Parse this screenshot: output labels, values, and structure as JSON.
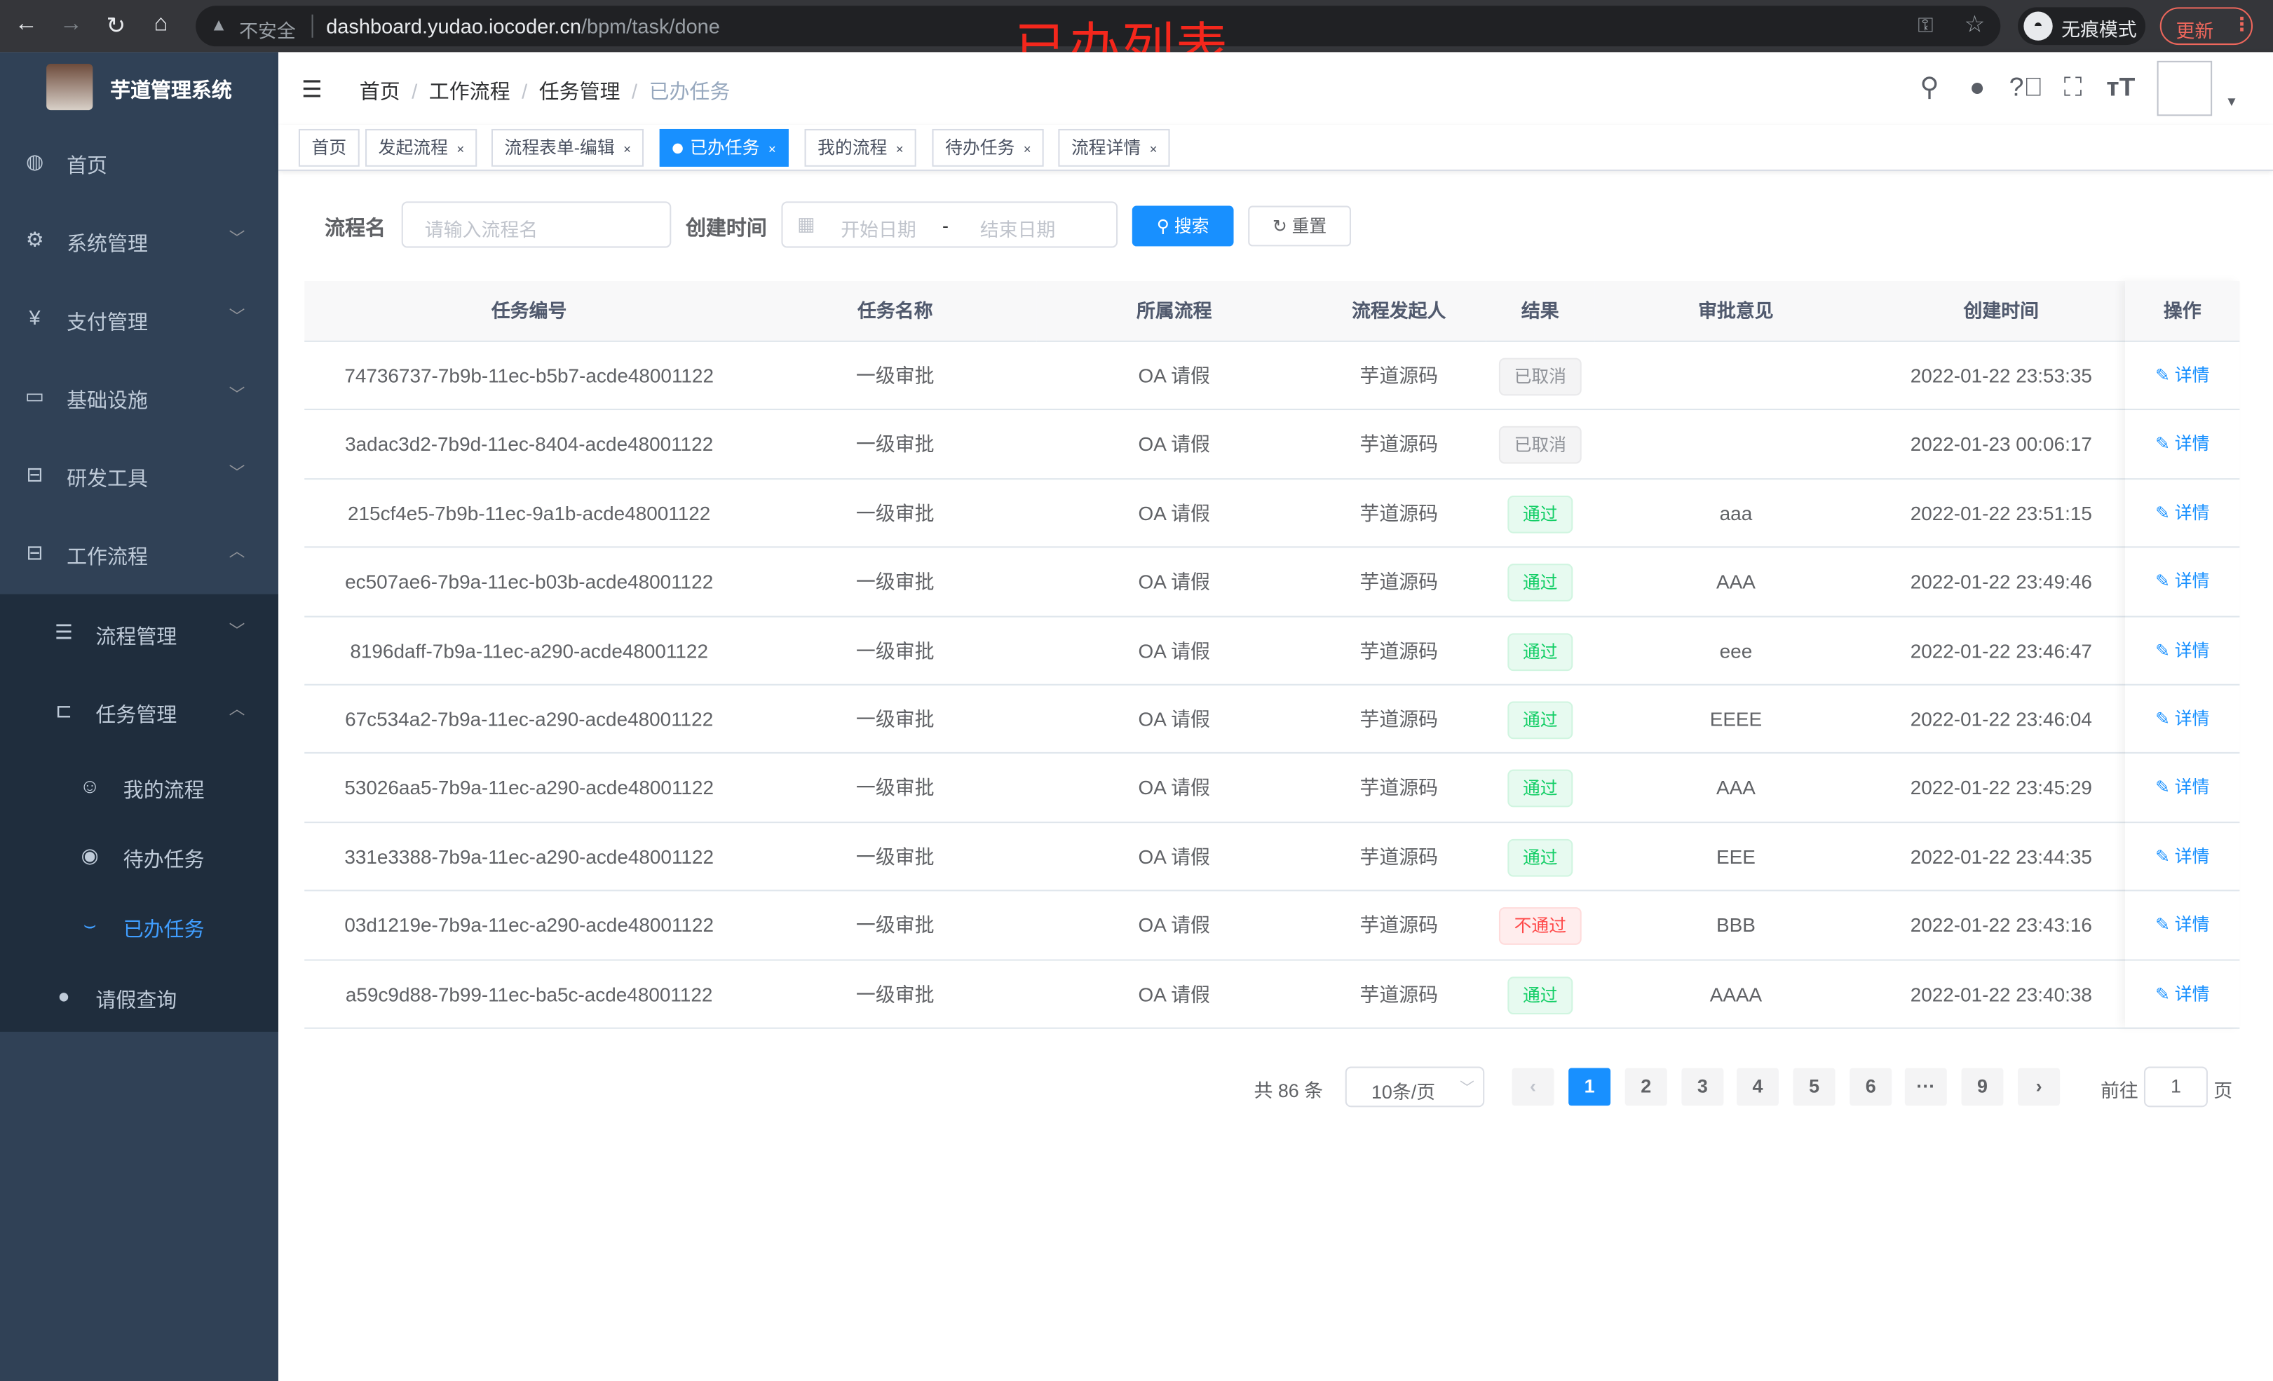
{
  "browser": {
    "insecure_label": "不安全",
    "url_host": "dashboard.yudao.iocoder.cn",
    "url_path": "/bpm/task/done",
    "incognito_label": "无痕模式",
    "update_label": "更新"
  },
  "annotation": "已办列表",
  "sidebar": {
    "title": "芋道管理系统",
    "items": [
      {
        "label": "首页",
        "icon": "dashboard-icon"
      },
      {
        "label": "系统管理",
        "icon": "gear-icon"
      },
      {
        "label": "支付管理",
        "icon": "yen-icon"
      },
      {
        "label": "基础设施",
        "icon": "monitor-icon"
      },
      {
        "label": "研发工具",
        "icon": "toolbox-icon"
      },
      {
        "label": "工作流程",
        "icon": "toolbox-icon"
      }
    ],
    "sub_items": [
      {
        "label": "流程管理"
      },
      {
        "label": "任务管理"
      },
      {
        "label": "我的流程"
      },
      {
        "label": "待办任务"
      },
      {
        "label": "已办任务"
      },
      {
        "label": "请假查询"
      }
    ],
    "active_color": "#409eff"
  },
  "breadcrumb": [
    "首页",
    "工作流程",
    "任务管理",
    "已办任务"
  ],
  "tags": [
    {
      "label": "首页"
    },
    {
      "label": "发起流程"
    },
    {
      "label": "流程表单-编辑"
    },
    {
      "label": "已办任务",
      "active": true
    },
    {
      "label": "我的流程"
    },
    {
      "label": "待办任务"
    },
    {
      "label": "流程详情"
    }
  ],
  "search": {
    "name_label": "流程名",
    "name_placeholder": "请输入流程名",
    "time_label": "创建时间",
    "start_placeholder": "开始日期",
    "range_sep": "-",
    "end_placeholder": "结束日期",
    "search_label": "搜索",
    "reset_label": "重置"
  },
  "table": {
    "columns": [
      "任务编号",
      "任务名称",
      "所属流程",
      "流程发起人",
      "结果",
      "审批意见",
      "创建时间",
      "操作"
    ],
    "action_label": "详情",
    "rows": [
      {
        "id": "74736737-7b9b-11ec-b5b7-acde48001122",
        "name": "一级审批",
        "process": "OA 请假",
        "starter": "芋道源码",
        "result": "已取消",
        "status": "cancel",
        "comment": "",
        "time": "2022-01-22 23:53:35"
      },
      {
        "id": "3adac3d2-7b9d-11ec-8404-acde48001122",
        "name": "一级审批",
        "process": "OA 请假",
        "starter": "芋道源码",
        "result": "已取消",
        "status": "cancel",
        "comment": "",
        "time": "2022-01-23 00:06:17"
      },
      {
        "id": "215cf4e5-7b9b-11ec-9a1b-acde48001122",
        "name": "一级审批",
        "process": "OA 请假",
        "starter": "芋道源码",
        "result": "通过",
        "status": "pass",
        "comment": "aaa",
        "time": "2022-01-22 23:51:15"
      },
      {
        "id": "ec507ae6-7b9a-11ec-b03b-acde48001122",
        "name": "一级审批",
        "process": "OA 请假",
        "starter": "芋道源码",
        "result": "通过",
        "status": "pass",
        "comment": "AAA",
        "time": "2022-01-22 23:49:46"
      },
      {
        "id": "8196daff-7b9a-11ec-a290-acde48001122",
        "name": "一级审批",
        "process": "OA 请假",
        "starter": "芋道源码",
        "result": "通过",
        "status": "pass",
        "comment": "eee",
        "time": "2022-01-22 23:46:47"
      },
      {
        "id": "67c534a2-7b9a-11ec-a290-acde48001122",
        "name": "一级审批",
        "process": "OA 请假",
        "starter": "芋道源码",
        "result": "通过",
        "status": "pass",
        "comment": "EEEE",
        "time": "2022-01-22 23:46:04"
      },
      {
        "id": "53026aa5-7b9a-11ec-a290-acde48001122",
        "name": "一级审批",
        "process": "OA 请假",
        "starter": "芋道源码",
        "result": "通过",
        "status": "pass",
        "comment": "AAA",
        "time": "2022-01-22 23:45:29"
      },
      {
        "id": "331e3388-7b9a-11ec-a290-acde48001122",
        "name": "一级审批",
        "process": "OA 请假",
        "starter": "芋道源码",
        "result": "通过",
        "status": "pass",
        "comment": "EEE",
        "time": "2022-01-22 23:44:35"
      },
      {
        "id": "03d1219e-7b9a-11ec-a290-acde48001122",
        "name": "一级审批",
        "process": "OA 请假",
        "starter": "芋道源码",
        "result": "不通过",
        "status": "fail",
        "comment": "BBB",
        "time": "2022-01-22 23:43:16"
      },
      {
        "id": "a59c9d88-7b99-11ec-ba5c-acde48001122",
        "name": "一级审批",
        "process": "OA 请假",
        "starter": "芋道源码",
        "result": "通过",
        "status": "pass",
        "comment": "AAAA",
        "time": "2022-01-22 23:40:38"
      }
    ]
  },
  "pagination": {
    "total_label": "共 86 条",
    "page_size": "10条/页",
    "pages": [
      "1",
      "2",
      "3",
      "4",
      "5",
      "6",
      "···",
      "9"
    ],
    "current": "1",
    "goto_label": "前往",
    "goto_value": "1",
    "page_suffix": "页"
  }
}
